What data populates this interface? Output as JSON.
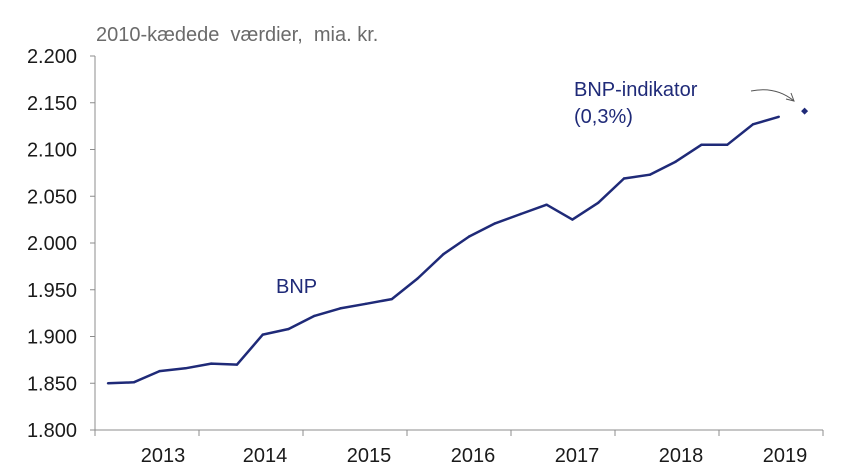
{
  "chart_data": {
    "type": "line",
    "unit_label": "2010-kædede  værdier,  mia. kr.",
    "ylim": [
      1800,
      2200
    ],
    "y_ticks": [
      "2.200",
      "2.150",
      "2.100",
      "2.050",
      "2.000",
      "1.950",
      "1.900",
      "1.850",
      "1.800"
    ],
    "y_tick_values": [
      2200,
      2150,
      2100,
      2050,
      2000,
      1950,
      1900,
      1850,
      1800
    ],
    "x_labels": [
      "2013",
      "2014",
      "2015",
      "2016",
      "2017",
      "2018",
      "2019"
    ],
    "grid": false,
    "line_color": "#1f2a78",
    "series": [
      {
        "name": "BNP",
        "x": [
          "2012K3",
          "2012K4",
          "2013K1",
          "2013K2",
          "2013K3",
          "2013K4",
          "2014K1",
          "2014K2",
          "2014K3",
          "2014K4",
          "2015K1",
          "2015K2",
          "2015K3",
          "2015K4",
          "2016K1",
          "2016K2",
          "2016K3",
          "2016K4",
          "2017K1",
          "2017K2",
          "2017K3",
          "2017K4",
          "2018K1",
          "2018K2",
          "2018K3",
          "2018K4",
          "2019K1"
        ],
        "values": [
          1850,
          1851,
          1863,
          1866,
          1871,
          1870,
          1902,
          1908,
          1922,
          1930,
          1935,
          1940,
          1962,
          1988,
          2007,
          2021,
          2031,
          2041,
          2025,
          2043,
          2069,
          2073,
          2087,
          2105,
          2105,
          2127,
          2135
        ]
      },
      {
        "name": "BNP-indikator",
        "note": "(0,3%)",
        "x": [
          "2019K2"
        ],
        "values": [
          2141
        ]
      }
    ]
  }
}
